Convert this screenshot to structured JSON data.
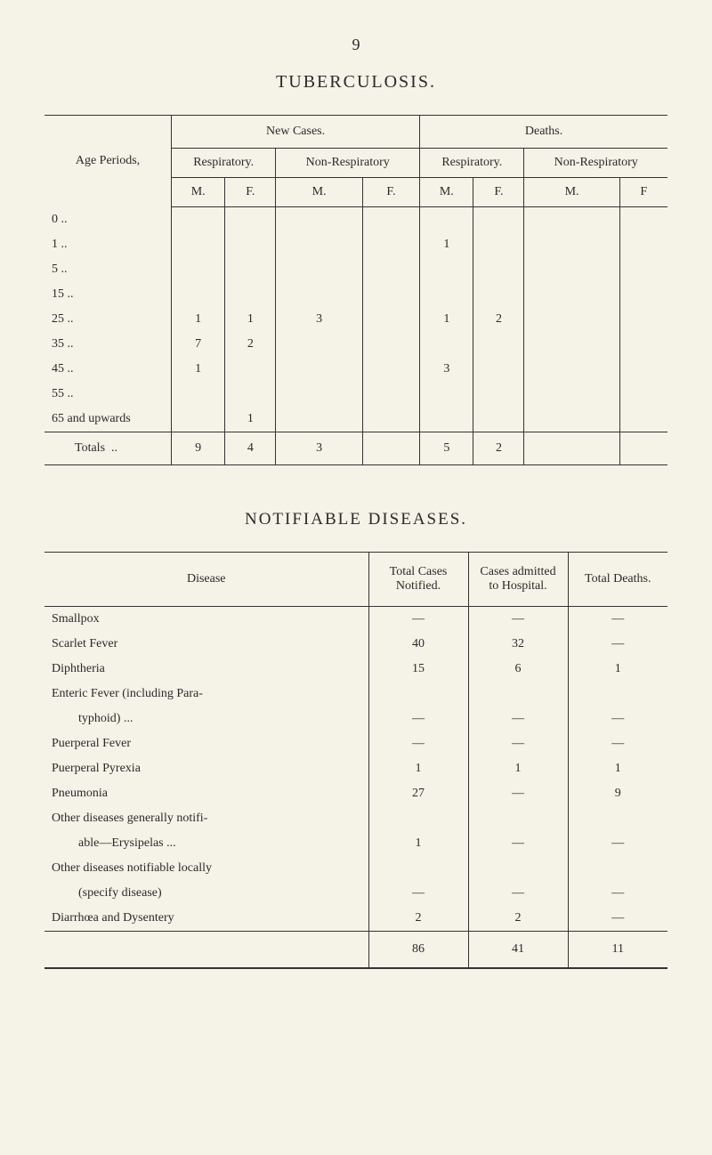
{
  "page_number": "9",
  "title1": "TUBERCULOSIS.",
  "tb_table": {
    "age_label": "Age Periods,",
    "new_cases": "New Cases.",
    "deaths": "Deaths.",
    "respiratory": "Respiratory.",
    "non_respiratory": "Non-Respiratory",
    "m": "M.",
    "f": "F.",
    "f2": "F",
    "rows": [
      {
        "age": "0   ..",
        "rm": "",
        "rf": "",
        "nrm": "",
        "nrf": "",
        "drm": "",
        "drf": "",
        "dnrm": "",
        "dnrf": ""
      },
      {
        "age": "1   ..",
        "rm": "",
        "rf": "",
        "nrm": "",
        "nrf": "",
        "drm": "1",
        "drf": "",
        "dnrm": "",
        "dnrf": ""
      },
      {
        "age": "5   ..",
        "rm": "",
        "rf": "",
        "nrm": "",
        "nrf": "",
        "drm": "",
        "drf": "",
        "dnrm": "",
        "dnrf": ""
      },
      {
        "age": "15   ..",
        "rm": "",
        "rf": "",
        "nrm": "",
        "nrf": "",
        "drm": "",
        "drf": "",
        "dnrm": "",
        "dnrf": ""
      },
      {
        "age": "25   ..",
        "rm": "1",
        "rf": "1",
        "nrm": "3",
        "nrf": "",
        "drm": "1",
        "drf": "2",
        "dnrm": "",
        "dnrf": ""
      },
      {
        "age": "35   ..",
        "rm": "7",
        "rf": "2",
        "nrm": "",
        "nrf": "",
        "drm": "",
        "drf": "",
        "dnrm": "",
        "dnrf": ""
      },
      {
        "age": "45   ..",
        "rm": "1",
        "rf": "",
        "nrm": "",
        "nrf": "",
        "drm": "3",
        "drf": "",
        "dnrm": "",
        "dnrf": ""
      },
      {
        "age": "55   ..",
        "rm": "",
        "rf": "",
        "nrm": "",
        "nrf": "",
        "drm": "",
        "drf": "",
        "dnrm": "",
        "dnrf": ""
      },
      {
        "age": "65 and upwards",
        "rm": "",
        "rf": "1",
        "nrm": "",
        "nrf": "",
        "drm": "",
        "drf": "",
        "dnrm": "",
        "dnrf": ""
      }
    ],
    "totals_label": "Totals",
    "totals": {
      "rm": "9",
      "rf": "4",
      "nrm": "3",
      "nrf": "",
      "drm": "5",
      "drf": "2",
      "dnrm": "",
      "dnrf": ""
    }
  },
  "title2": "NOTIFIABLE DISEASES.",
  "disease_table": {
    "headers": {
      "disease": "Disease",
      "total_cases": "Total Cases Notified.",
      "cases_admitted": "Cases admitted to Hospital.",
      "total_deaths": "Total Deaths."
    },
    "rows": [
      {
        "name": "Smallpox",
        "cases": "—",
        "admitted": "—",
        "deaths": "—",
        "indent": false
      },
      {
        "name": "Scarlet Fever",
        "cases": "40",
        "admitted": "32",
        "deaths": "—",
        "indent": false
      },
      {
        "name": "Diphtheria",
        "cases": "15",
        "admitted": "6",
        "deaths": "1",
        "indent": false
      },
      {
        "name": "Enteric Fever (including Para-",
        "cases": "",
        "admitted": "",
        "deaths": "",
        "indent": false
      },
      {
        "name": "typhoid)   ...",
        "cases": "—",
        "admitted": "—",
        "deaths": "—",
        "indent": true
      },
      {
        "name": "Puerperal Fever",
        "cases": "—",
        "admitted": "—",
        "deaths": "—",
        "indent": false
      },
      {
        "name": "Puerperal Pyrexia",
        "cases": "1",
        "admitted": "1",
        "deaths": "1",
        "indent": false
      },
      {
        "name": "Pneumonia",
        "cases": "27",
        "admitted": "—",
        "deaths": "9",
        "indent": false
      },
      {
        "name": "Other diseases generally notifi-",
        "cases": "",
        "admitted": "",
        "deaths": "",
        "indent": false
      },
      {
        "name": "able—Erysipelas ...",
        "cases": "1",
        "admitted": "—",
        "deaths": "—",
        "indent": true
      },
      {
        "name": "Other diseases notifiable locally",
        "cases": "",
        "admitted": "",
        "deaths": "",
        "indent": false
      },
      {
        "name": "(specify disease)",
        "cases": "—",
        "admitted": "—",
        "deaths": "—",
        "indent": true
      },
      {
        "name": "Diarrhœa and Dysentery",
        "cases": "2",
        "admitted": "2",
        "deaths": "—",
        "indent": false
      }
    ],
    "totals": {
      "cases": "86",
      "admitted": "41",
      "deaths": "11"
    }
  }
}
